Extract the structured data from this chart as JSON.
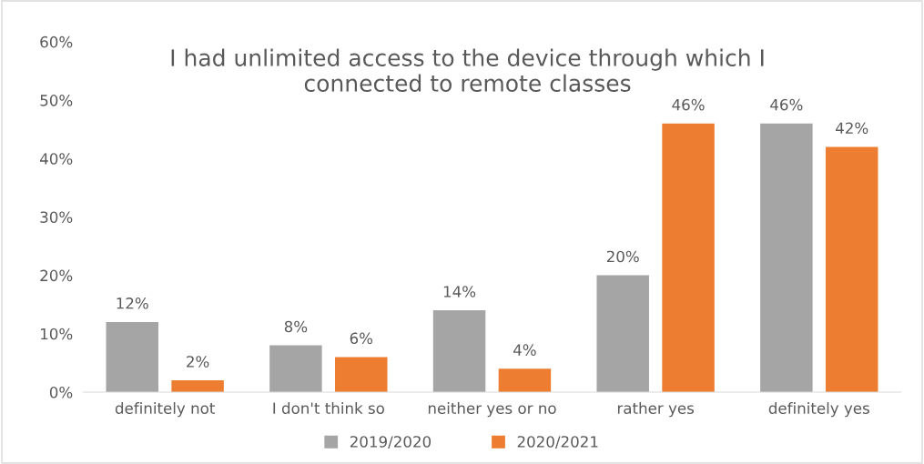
{
  "chart_data": {
    "type": "bar",
    "title": "I had unlimited access to the device through which I\nconnected to remote classes",
    "categories": [
      "definitely not",
      "I don't think so",
      "neither yes or no",
      "rather yes",
      "definitely yes"
    ],
    "series": [
      {
        "name": "2019/2020",
        "color": "#a5a5a5",
        "values": [
          12,
          8,
          14,
          20,
          46
        ],
        "value_labels": [
          "12%",
          "8%",
          "14%",
          "20%",
          "46%"
        ]
      },
      {
        "name": "2020/2021",
        "color": "#ed7d31",
        "values": [
          2,
          6,
          4,
          46,
          42
        ],
        "value_labels": [
          "2%",
          "6%",
          "4%",
          "46%",
          "42%"
        ]
      }
    ],
    "ylim": [
      0,
      60
    ],
    "yticks": [
      {
        "value": 0,
        "label": "0%"
      },
      {
        "value": 10,
        "label": "10%"
      },
      {
        "value": 20,
        "label": "20%"
      },
      {
        "value": 30,
        "label": "30%"
      },
      {
        "value": 40,
        "label": "40%"
      },
      {
        "value": 50,
        "label": "50%"
      },
      {
        "value": 60,
        "label": "60%"
      }
    ],
    "grid": false,
    "legend": "bottom"
  }
}
